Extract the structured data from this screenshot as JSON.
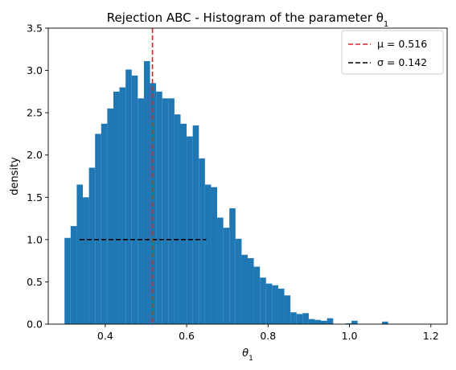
{
  "chart_data": {
    "type": "bar",
    "title": "Rejection ABC - Histogram of the parameter θ",
    "title_subscript": "1",
    "xlabel": "θ",
    "xlabel_subscript": "1",
    "ylabel": "density",
    "xlim": [
      0.26,
      1.24
    ],
    "ylim": [
      0,
      3.5
    ],
    "xticks": [
      "0.4",
      "0.6",
      "0.8",
      "1.0",
      "1.2"
    ],
    "yticks": [
      "0.0",
      "0.5",
      "1.0",
      "1.5",
      "2.0",
      "2.5",
      "3.0",
      "3.5"
    ],
    "bin_start": 0.3,
    "bin_width": 0.015,
    "bar_color": "#1f77b4",
    "values": [
      1.02,
      1.16,
      1.65,
      1.5,
      1.85,
      2.25,
      2.37,
      2.55,
      2.75,
      2.8,
      3.01,
      2.94,
      2.67,
      3.11,
      2.85,
      2.75,
      2.67,
      2.67,
      2.48,
      2.37,
      2.22,
      2.35,
      1.96,
      1.65,
      1.62,
      1.26,
      1.14,
      1.37,
      1.01,
      0.82,
      0.78,
      0.68,
      0.55,
      0.48,
      0.46,
      0.42,
      0.34,
      0.14,
      0.12,
      0.13,
      0.06,
      0.05,
      0.04,
      0.07,
      0.0,
      0.0,
      0.01,
      0.04,
      0.0,
      0.0,
      0.0,
      0.0,
      0.03,
      0.0,
      0.0,
      0.0,
      0.0,
      0.0,
      0.0,
      0.0,
      0.0,
      0.0,
      0.0,
      0.0,
      0.0
    ],
    "mean": {
      "value": 0.516,
      "color": "#d62728",
      "label": "μ = 0.516"
    },
    "std": {
      "value": 0.142,
      "y": 1.0,
      "x_range": [
        0.337,
        0.648
      ],
      "color": "#000000",
      "label": "σ = 0.142"
    },
    "legend_position": "upper right",
    "grid": false
  }
}
